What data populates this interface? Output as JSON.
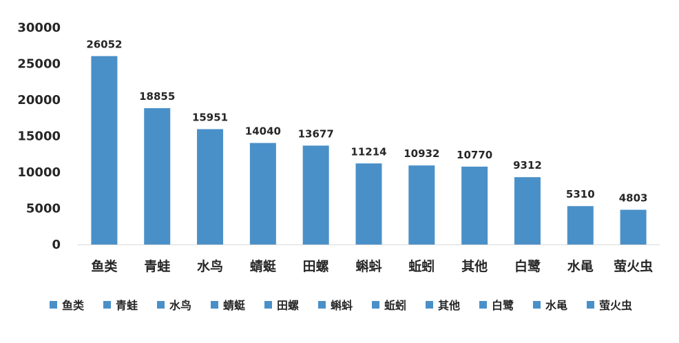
{
  "chart_data": {
    "type": "bar",
    "categories": [
      "鱼类",
      "青蛙",
      "水鸟",
      "蜻蜓",
      "田螺",
      "蝌蚪",
      "蚯蚓",
      "其他",
      "白鹭",
      "水黾",
      "萤火虫"
    ],
    "values": [
      26052,
      18855,
      15951,
      14040,
      13677,
      11214,
      10932,
      10770,
      9312,
      5310,
      4803
    ],
    "data_labels": [
      "26052",
      "18855",
      "15951",
      "14040",
      "13677",
      "11214",
      "10932",
      "10770",
      "9312",
      "5310",
      "4803"
    ],
    "yticks": [
      "0",
      "5000",
      "10000",
      "15000",
      "20000",
      "25000",
      "30000"
    ],
    "ylim": [
      0,
      30000
    ],
    "bar_color": "#4a90c8",
    "axis_color": "#d9d9d9",
    "legend_position": "bottom",
    "legend": [
      "鱼类",
      "青蛙",
      "水鸟",
      "蜻蜓",
      "田螺",
      "蝌蚪",
      "蚯蚓",
      "其他",
      "白鹭",
      "水黾",
      "萤火虫"
    ],
    "grid": false
  }
}
